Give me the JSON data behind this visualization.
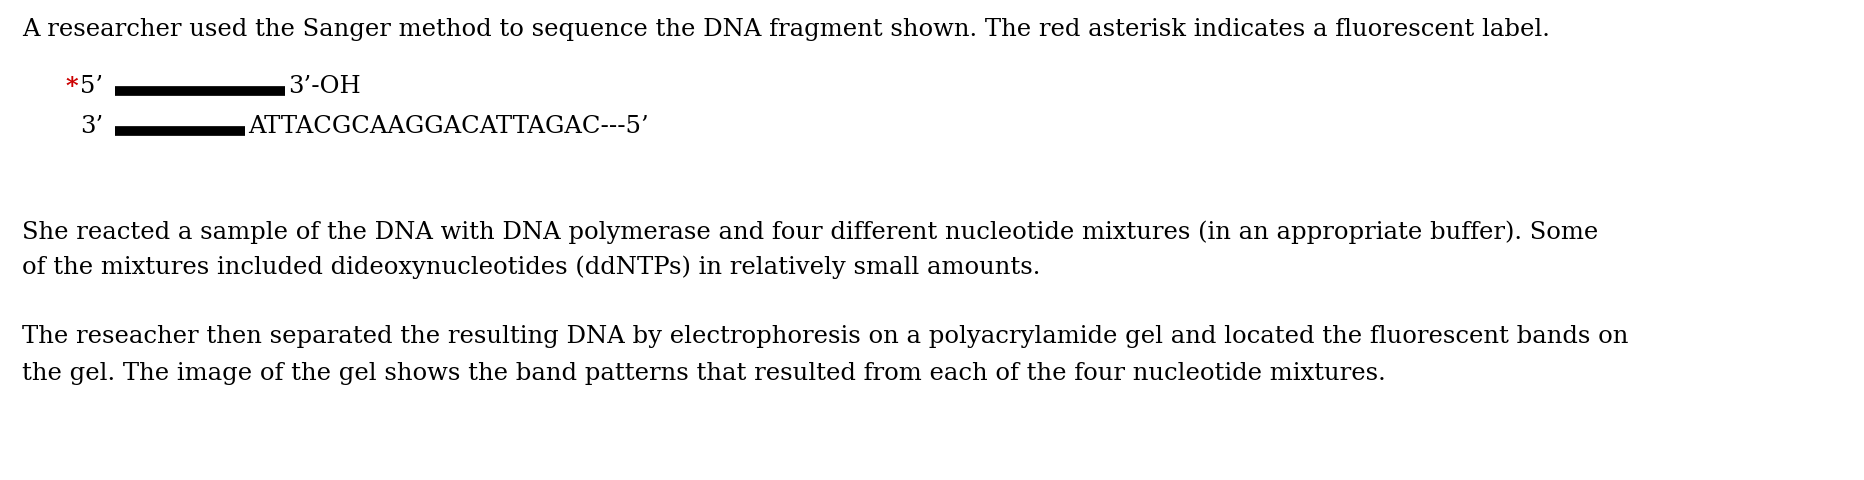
{
  "bg_color": "#ffffff",
  "text_color": "#000000",
  "red_color": "#cc0000",
  "line1": "A researcher used the Sanger method to sequence the DNA fragment shown. The red asterisk indicates a fluorescent label.",
  "strand1_prefix_red": "*",
  "strand1_label_left": "5’",
  "strand1_label_right": "3’-OH",
  "strand2_label_left": "3’",
  "strand2_label_right": "ATTACGCAAGGACATTAGAC---5’",
  "para2_line1": "She reacted a sample of the DNA with DNA polymerase and four different nucleotide mixtures (in an appropriate buffer). Some",
  "para2_line2": "of the mixtures included dideoxynucleotides (ddNTPs) in relatively small amounts.",
  "para3_line1": "The reseacher then separated the resulting DNA by electrophoresis on a polyacrylamide gel and located the fluorescent bands on",
  "para3_line2": "the gel. The image of the gel shows the band patterns that resulted from each of the four nucleotide mixtures.",
  "font_size": 17.5,
  "font_family": "DejaVu Serif",
  "fig_width": 18.64,
  "fig_height": 4.8,
  "dpi": 100
}
